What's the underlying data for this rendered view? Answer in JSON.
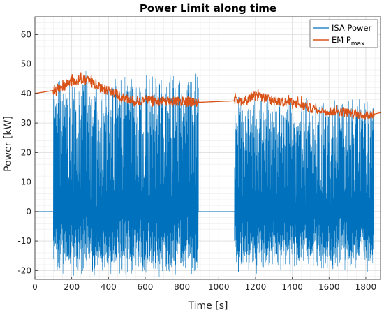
{
  "chart_data": {
    "type": "line",
    "title": "Power Limit along time",
    "xlabel": "Time [s]",
    "ylabel": "Power [kW]",
    "xlim": [
      0,
      1880
    ],
    "ylim": [
      -23,
      66
    ],
    "x_ticks": [
      0,
      200,
      400,
      600,
      800,
      1000,
      1200,
      1400,
      1600,
      1800
    ],
    "y_ticks": [
      -20,
      -10,
      0,
      10,
      20,
      30,
      40,
      50,
      60
    ],
    "grid": "major and minor",
    "legend_position": "top-right",
    "series": [
      {
        "name": "ISA Power",
        "legend_label": "ISA Power",
        "color": "#0072BD",
        "style": "dense oscillating signal",
        "segments": [
          {
            "x": [
              0,
              100
            ],
            "min": 0,
            "max": 0
          },
          {
            "x": [
              100,
              890
            ],
            "min": -19,
            "max": 44
          },
          {
            "x": [
              890,
              1085
            ],
            "min": 0,
            "max": 0
          },
          {
            "x": [
              1085,
              1845
            ],
            "min": -18,
            "max": 37
          }
        ]
      },
      {
        "name": "EM Pmax",
        "legend_label": "EM P",
        "legend_subscript": "max",
        "color": "#D95319",
        "style": "noisy envelope",
        "envelope": {
          "x": [
            0,
            100,
            150,
            200,
            250,
            300,
            350,
            400,
            450,
            500,
            550,
            600,
            650,
            700,
            750,
            800,
            850,
            890,
            1080,
            1100,
            1150,
            1200,
            1250,
            1300,
            1350,
            1400,
            1450,
            1500,
            1550,
            1600,
            1650,
            1700,
            1750,
            1800,
            1845,
            1880
          ],
          "y": [
            40,
            41,
            42,
            44,
            45,
            44,
            42,
            41,
            39.5,
            38,
            37,
            38,
            37,
            37.5,
            37,
            37.5,
            37,
            37,
            37.5,
            37,
            38,
            39,
            38.5,
            37.5,
            37,
            37,
            36,
            35,
            34.5,
            34,
            34,
            33.5,
            33,
            32.5,
            33,
            33.5
          ]
        }
      }
    ]
  }
}
